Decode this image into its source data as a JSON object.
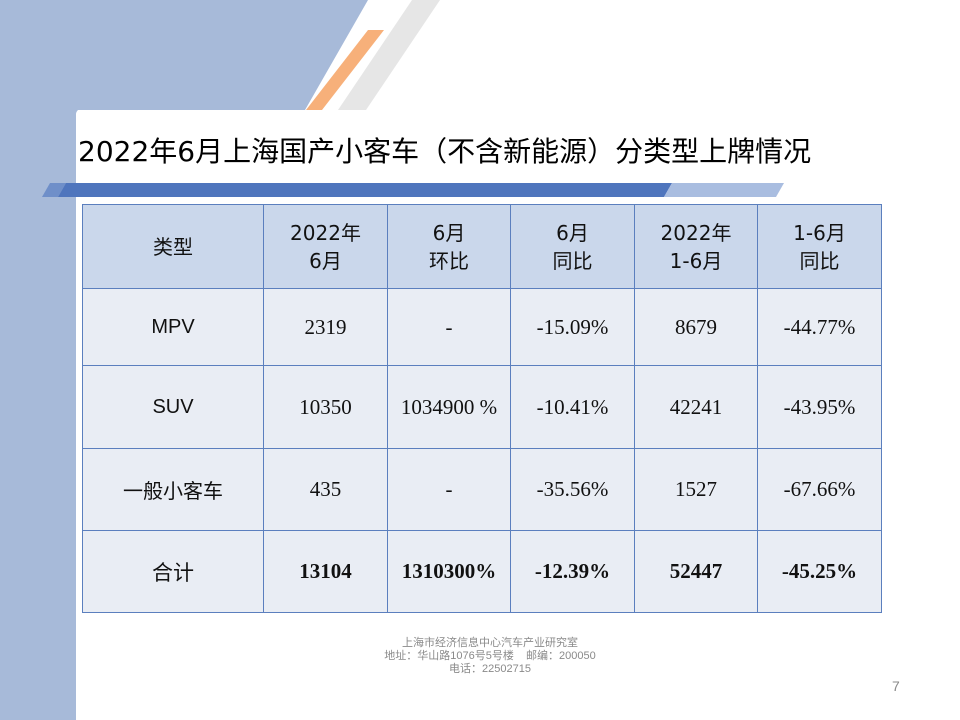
{
  "slide": {
    "title": "2022年6月上海国产小客车（不含新能源）分类型上牌情况",
    "page_number": "7"
  },
  "table": {
    "headers": [
      [
        "类型"
      ],
      [
        "2022年",
        "6月"
      ],
      [
        "6月",
        "环比"
      ],
      [
        "6月",
        "同比"
      ],
      [
        "2022年",
        "1-6月"
      ],
      [
        "1-6月",
        "同比"
      ]
    ],
    "rows": [
      [
        "MPV",
        "2319",
        "-",
        "-15.09%",
        "8679",
        "-44.77%"
      ],
      [
        "SUV",
        "10350",
        "1034900 %",
        "-10.41%",
        "42241",
        "-43.95%"
      ],
      [
        "一般小客车",
        "435",
        "-",
        "-35.56%",
        "1527",
        "-67.66%"
      ],
      [
        "合计",
        "13104",
        "1310300%",
        "-12.39%",
        "52447",
        "-45.25%"
      ]
    ]
  },
  "footer": {
    "line1": "上海市经济信息中心汽车产业研究室",
    "line2": "地址：华山路1076号5号楼    邮编：200050",
    "line3": "电话：22502715"
  },
  "colors": {
    "header_fill": "#cad7eb",
    "body_fill": "#e9edf4",
    "border": "#5b7fbe",
    "side_band": "#a7bad9",
    "accent_orange": "#f7b07a"
  }
}
